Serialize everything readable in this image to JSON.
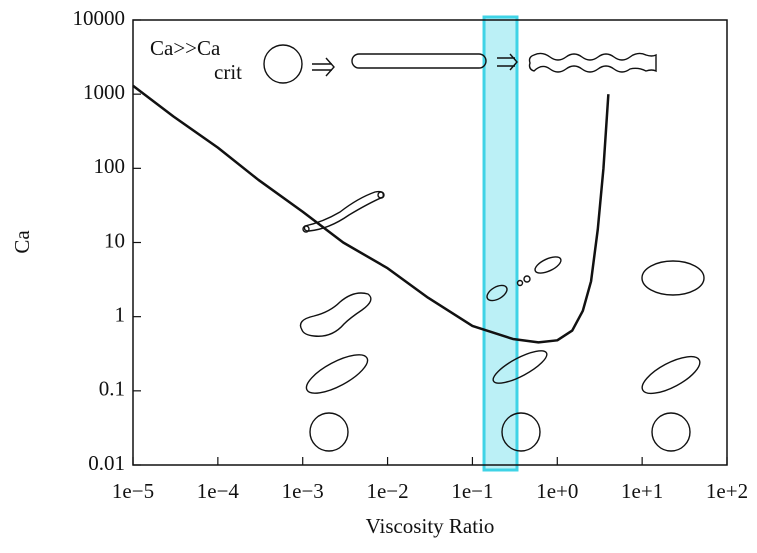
{
  "chart_data": {
    "type": "line",
    "x_label": "Viscosity Ratio",
    "y_label": "Ca",
    "annotation": {
      "main": "Ca>>Ca",
      "sub": "crit"
    },
    "x": [
      1e-05,
      3e-05,
      0.0001,
      0.0003,
      0.001,
      0.003,
      0.01,
      0.03,
      0.1,
      0.3,
      0.6,
      1,
      1.5,
      2,
      2.5,
      3,
      3.5,
      4
    ],
    "series": [
      {
        "color": "#111111",
        "values": [
          1300,
          500,
          190,
          70,
          26,
          10,
          4.5,
          1.8,
          0.75,
          0.5,
          0.45,
          0.48,
          0.65,
          1.2,
          3,
          15,
          100,
          1000
        ]
      }
    ],
    "xlog": true,
    "ylog": true,
    "xlim": [
      1e-05,
      100
    ],
    "ylim": [
      0.01,
      10000
    ],
    "xticks": [
      {
        "value": 1e-05,
        "label": "1e−5"
      },
      {
        "value": 0.0001,
        "label": "1e−4"
      },
      {
        "value": 0.001,
        "label": "1e−3"
      },
      {
        "value": 0.01,
        "label": "1e−2"
      },
      {
        "value": 0.1,
        "label": "1e−1"
      },
      {
        "value": 1,
        "label": "1e+0"
      },
      {
        "value": 10,
        "label": "1e+1"
      },
      {
        "value": 100,
        "label": "1e+2"
      }
    ],
    "yticks": [
      0.01,
      0.1,
      1,
      10,
      100,
      1000,
      10000
    ],
    "highlight": {
      "xrange": [
        0.137,
        0.335
      ],
      "color": "#8ee6f0",
      "edge": "#3fd3e6"
    }
  }
}
